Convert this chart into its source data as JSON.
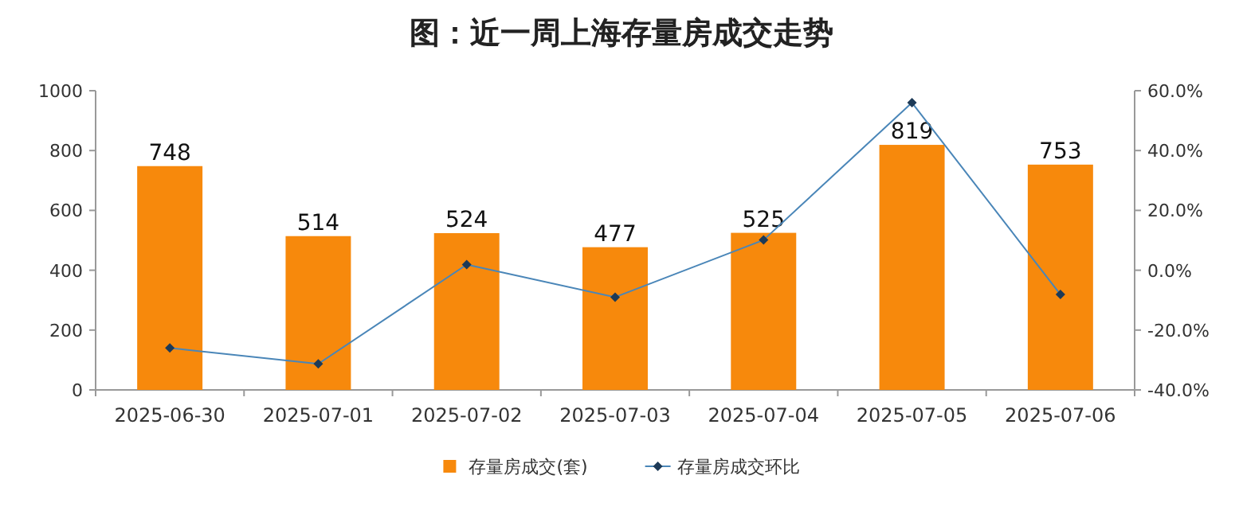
{
  "chart_data": {
    "type": "bar",
    "title": "图：近一周上海存量房成交走势",
    "categories": [
      "2025-06-30",
      "2025-07-01",
      "2025-07-02",
      "2025-07-03",
      "2025-07-04",
      "2025-07-05",
      "2025-07-06"
    ],
    "series": [
      {
        "name": "存量房成交(套)",
        "color": "#f7890c",
        "values": [
          748,
          514,
          524,
          477,
          525,
          819,
          753
        ],
        "value_labels": [
          "748",
          "514",
          "524",
          "477",
          "525",
          "819",
          "753"
        ]
      },
      {
        "name": "存量房成交环比",
        "type": "line",
        "axis": "y2",
        "color": "#4a86b8",
        "marker": "diamond",
        "values": [
          -26,
          -31.3,
          1.9,
          -9,
          10.1,
          56,
          -8.1
        ]
      }
    ],
    "ylim": [
      0,
      1000
    ],
    "yticks": [
      0,
      200,
      400,
      600,
      800,
      1000
    ],
    "y2lim": [
      -40,
      60
    ],
    "y2ticks": [
      {
        "value": -40,
        "label": "-40.0%"
      },
      {
        "value": -20,
        "label": "-20.0%"
      },
      {
        "value": 0,
        "label": "0.0%"
      },
      {
        "value": 20,
        "label": "20.0%"
      },
      {
        "value": 40,
        "label": "40.0%"
      },
      {
        "value": 60,
        "label": "60.0%"
      }
    ],
    "grid": false,
    "legend": "bottom"
  }
}
